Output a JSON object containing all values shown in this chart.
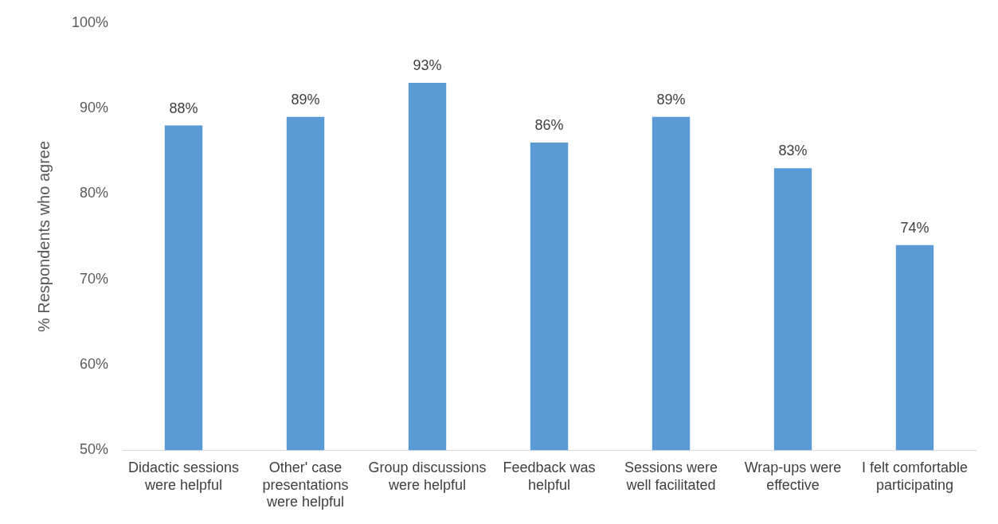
{
  "chart_data": {
    "type": "bar",
    "ylabel": "% Respondents who agree",
    "categories": [
      "Didactic sessions were helpful",
      "Other' case presentations were helpful",
      "Group discussions were helpful",
      "Feedback was helpful",
      "Sessions were well facilitated",
      "Wrap-ups were effective",
      "I felt comfortable participating"
    ],
    "values": [
      88,
      89,
      93,
      86,
      89,
      83,
      74
    ],
    "color": "#5b9bd5",
    "ylim": [
      50,
      100
    ],
    "yticks": [
      {
        "value": 50,
        "label": "50%"
      },
      {
        "value": 60,
        "label": "60%"
      },
      {
        "value": 70,
        "label": "70%"
      },
      {
        "value": 80,
        "label": "80%"
      },
      {
        "value": 90,
        "label": "90%"
      },
      {
        "value": 100,
        "label": "100%"
      }
    ],
    "value_labels": [
      "88%",
      "89%",
      "93%",
      "86%",
      "89%",
      "83%",
      "74%"
    ],
    "grid": false,
    "legend": false
  }
}
